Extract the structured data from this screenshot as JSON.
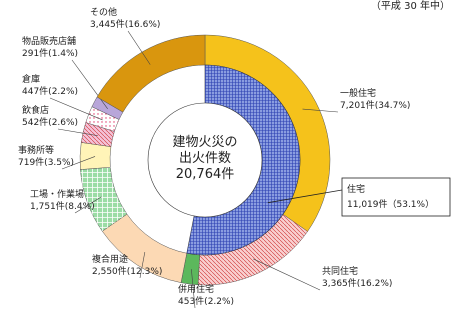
{
  "chart_data": {
    "type": "donut",
    "subtitle": "（平成 30 年中）",
    "center_text": [
      "建物火災の",
      "出火件数",
      "20,764件"
    ],
    "categories": [
      "一般住宅",
      "共同住宅",
      "併用住宅",
      "複合用途",
      "工場・作業場",
      "事務所等",
      "飲食店",
      "倉庫",
      "物品販売店舗",
      "その他"
    ],
    "values": [
      7201,
      3365,
      453,
      2550,
      1751,
      719,
      542,
      447,
      291,
      3445
    ],
    "value_labels": [
      "7,201件(34.7%)",
      "3,365件(16.2%)",
      "453件(2.2%)",
      "2,550件(12.3%)",
      "1,751件(8.4%)",
      "719件(3.5%)",
      "542件(2.6%)",
      "447件(2.2%)",
      "291件(1.4%)",
      "3,445件(16.6%)"
    ],
    "colors": [
      "#f5c21b",
      "#f9d0d0",
      "#5cb85c",
      "#fcd9b4",
      "#9bdca5",
      "#fff4b8",
      "#f4c2d8",
      "#ffffff",
      "#b8a6d9",
      "#d9960e"
    ],
    "inner": {
      "categories": [
        "住宅"
      ],
      "values": [
        11019
      ],
      "value_labels": [
        "11,019件（53.1%）"
      ],
      "color": "#8a9de0"
    }
  }
}
